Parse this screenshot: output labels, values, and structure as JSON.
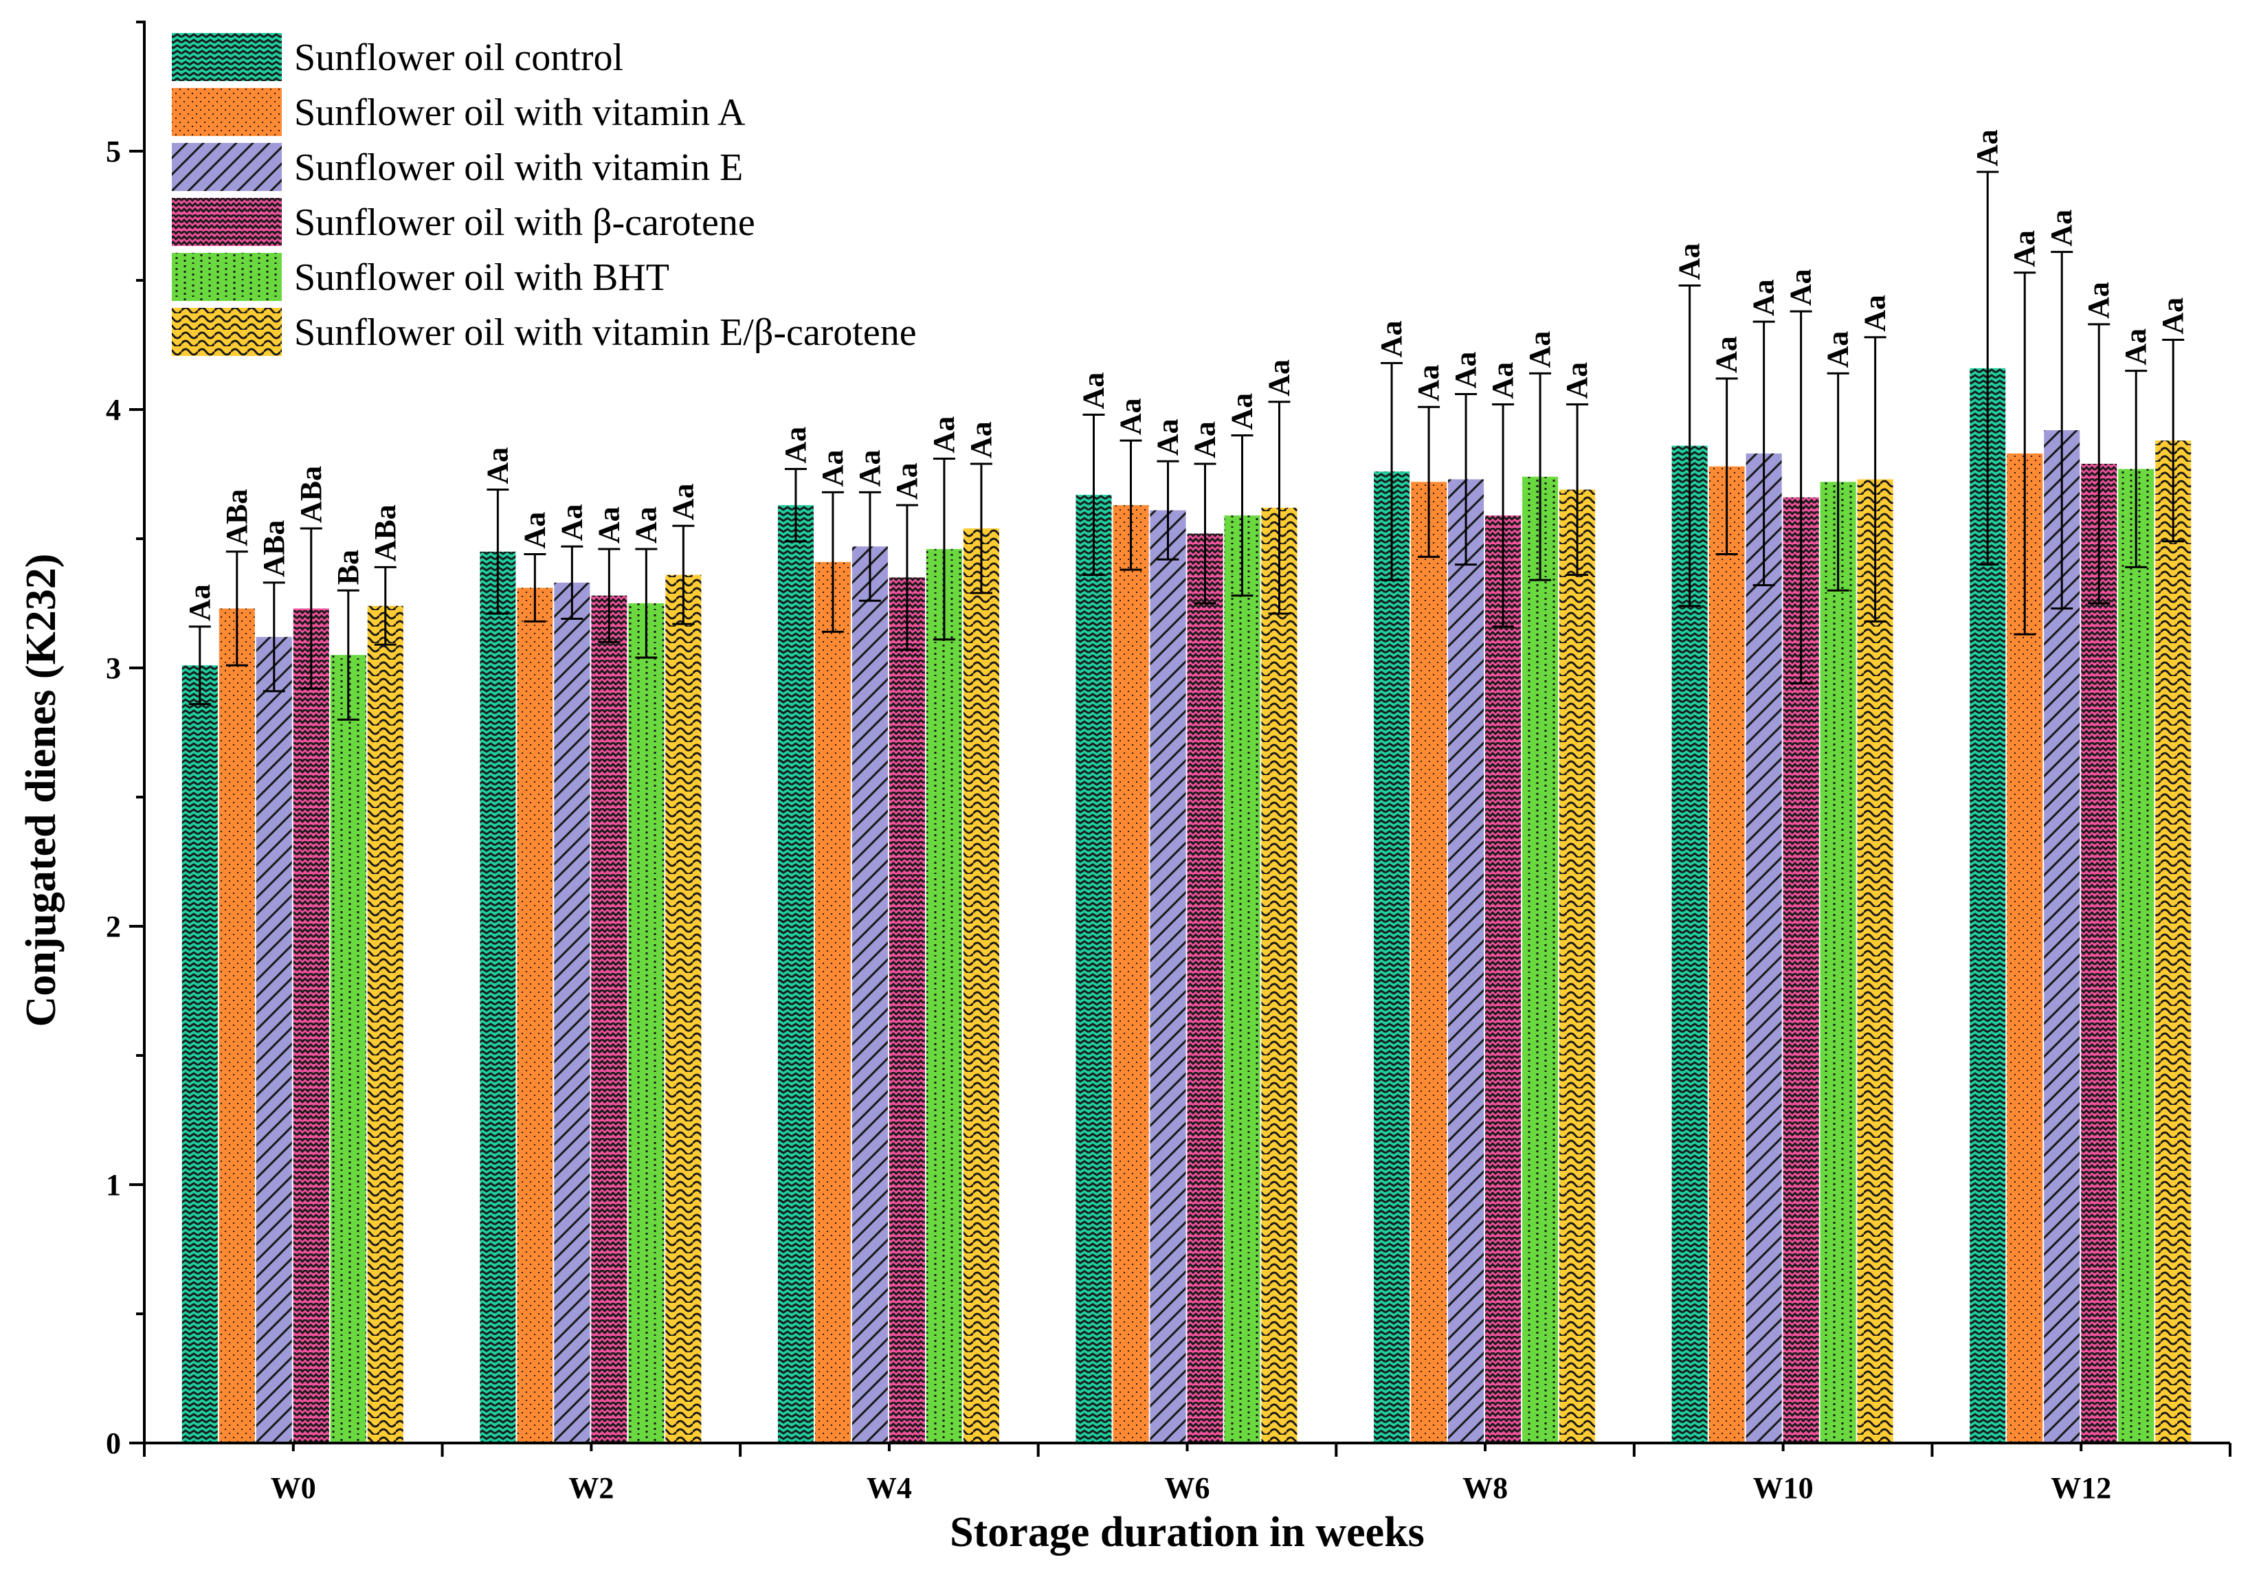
{
  "chart_data": {
    "type": "bar",
    "title": "",
    "xlabel": "Storage duration in weeks",
    "ylabel": "Conjugated dienes (K232)",
    "ylim": [
      0,
      5.5
    ],
    "yticks": [
      0,
      1,
      2,
      3,
      4,
      5
    ],
    "grid": false,
    "legend_position": "top-left",
    "categories": [
      "W0",
      "W2",
      "W4",
      "W6",
      "W8",
      "W10",
      "W12"
    ],
    "series": [
      {
        "name": "Sunflower oil control",
        "color": "#1fcfa0",
        "pattern": "zigzag-horizontal",
        "values": [
          3.01,
          3.45,
          3.63,
          3.67,
          3.76,
          3.86,
          4.16
        ],
        "errors": [
          0.15,
          0.24,
          0.14,
          0.31,
          0.42,
          0.62,
          0.76
        ],
        "labels": [
          "Aa",
          "Aa",
          "Aa",
          "Aa",
          "Aa",
          "Aa",
          "Aa"
        ]
      },
      {
        "name": "Sunflower oil with vitamin A",
        "color": "#ff8a33",
        "pattern": "dots",
        "values": [
          3.23,
          3.31,
          3.41,
          3.63,
          3.72,
          3.78,
          3.83
        ],
        "errors": [
          0.22,
          0.13,
          0.27,
          0.25,
          0.29,
          0.34,
          0.7
        ],
        "labels": [
          "ABa",
          "Aa",
          "Aa",
          "Aa",
          "Aa",
          "Aa",
          "Aa"
        ]
      },
      {
        "name": "Sunflower oil with vitamin E",
        "color": "#9f9ad8",
        "pattern": "diagonal",
        "values": [
          3.12,
          3.33,
          3.47,
          3.61,
          3.73,
          3.83,
          3.92
        ],
        "errors": [
          0.21,
          0.14,
          0.21,
          0.19,
          0.33,
          0.51,
          0.69
        ],
        "labels": [
          "ABa",
          "Aa",
          "Aa",
          "Aa",
          "Aa",
          "Aa",
          "Aa"
        ]
      },
      {
        "name": "Sunflower oil with β-carotene",
        "color": "#f0529c",
        "pattern": "crosshatch",
        "values": [
          3.23,
          3.28,
          3.35,
          3.52,
          3.59,
          3.66,
          3.79
        ],
        "errors": [
          0.31,
          0.18,
          0.28,
          0.27,
          0.43,
          0.72,
          0.54
        ],
        "labels": [
          "ABa",
          "Aa",
          "Aa",
          "Aa",
          "Aa",
          "Aa",
          "Aa"
        ]
      },
      {
        "name": "Sunflower oil with BHT",
        "color": "#6ad93f",
        "pattern": "dots-vertical",
        "values": [
          3.05,
          3.25,
          3.46,
          3.59,
          3.74,
          3.72,
          3.77
        ],
        "errors": [
          0.25,
          0.21,
          0.35,
          0.31,
          0.4,
          0.42,
          0.38
        ],
        "labels": [
          "Ba",
          "Aa",
          "Aa",
          "Aa",
          "Aa",
          "Aa",
          "Aa"
        ]
      },
      {
        "name": "Sunflower oil with vitamin E/β-carotene",
        "color": "#ffcc33",
        "pattern": "wave",
        "values": [
          3.24,
          3.36,
          3.54,
          3.62,
          3.69,
          3.73,
          3.88
        ],
        "errors": [
          0.15,
          0.19,
          0.25,
          0.41,
          0.33,
          0.55,
          0.39
        ],
        "labels": [
          "ABa",
          "Aa",
          "Aa",
          "Aa",
          "Aa",
          "Aa",
          "Aa"
        ]
      }
    ]
  }
}
